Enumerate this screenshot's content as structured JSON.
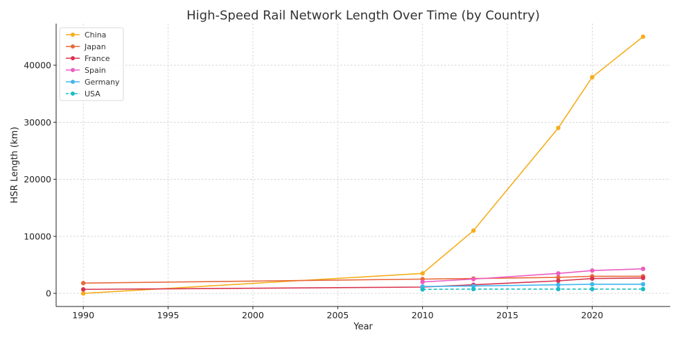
{
  "chart_data": {
    "type": "line",
    "title": "High-Speed Rail Network Length Over Time (by Country)",
    "xlabel": "Year",
    "ylabel": "HSR Length (km)",
    "xlim": [
      1988.4,
      2024.6
    ],
    "ylim": [
      -2300,
      47300
    ],
    "xticks": [
      1990,
      1995,
      2000,
      2005,
      2010,
      2015,
      2020
    ],
    "yticks": [
      0,
      10000,
      20000,
      30000,
      40000
    ],
    "grid": true,
    "legend_position": "top-left",
    "series": [
      {
        "name": "China",
        "color": "#f5ad1b",
        "dashed": false,
        "x": [
          1990,
          2010,
          2013,
          2018,
          2020,
          2023
        ],
        "y": [
          0,
          3500,
          11000,
          29000,
          37900,
          45000
        ]
      },
      {
        "name": "Japan",
        "color": "#e8693a",
        "dashed": false,
        "x": [
          1990,
          2010,
          2013,
          2018,
          2020,
          2023
        ],
        "y": [
          1800,
          2500,
          2600,
          2800,
          3000,
          3000
        ]
      },
      {
        "name": "France",
        "color": "#d8344f",
        "dashed": false,
        "x": [
          1990,
          2010,
          2013,
          2018,
          2020,
          2023
        ],
        "y": [
          700,
          1100,
          1500,
          2200,
          2600,
          2700
        ]
      },
      {
        "name": "Spain",
        "color": "#ec5cc0",
        "dashed": false,
        "x": [
          2010,
          2013,
          2018,
          2020,
          2023
        ],
        "y": [
          2000,
          2500,
          3500,
          4000,
          4300
        ]
      },
      {
        "name": "Germany",
        "color": "#42b6ee",
        "dashed": false,
        "x": [
          2010,
          2013,
          2018,
          2020,
          2023
        ],
        "y": [
          1200,
          1300,
          1500,
          1600,
          1600
        ]
      },
      {
        "name": "USA",
        "color": "#1bbcc6",
        "dashed": true,
        "x": [
          2010,
          2013,
          2018,
          2020,
          2023
        ],
        "y": [
          700,
          750,
          750,
          750,
          750
        ]
      }
    ]
  }
}
